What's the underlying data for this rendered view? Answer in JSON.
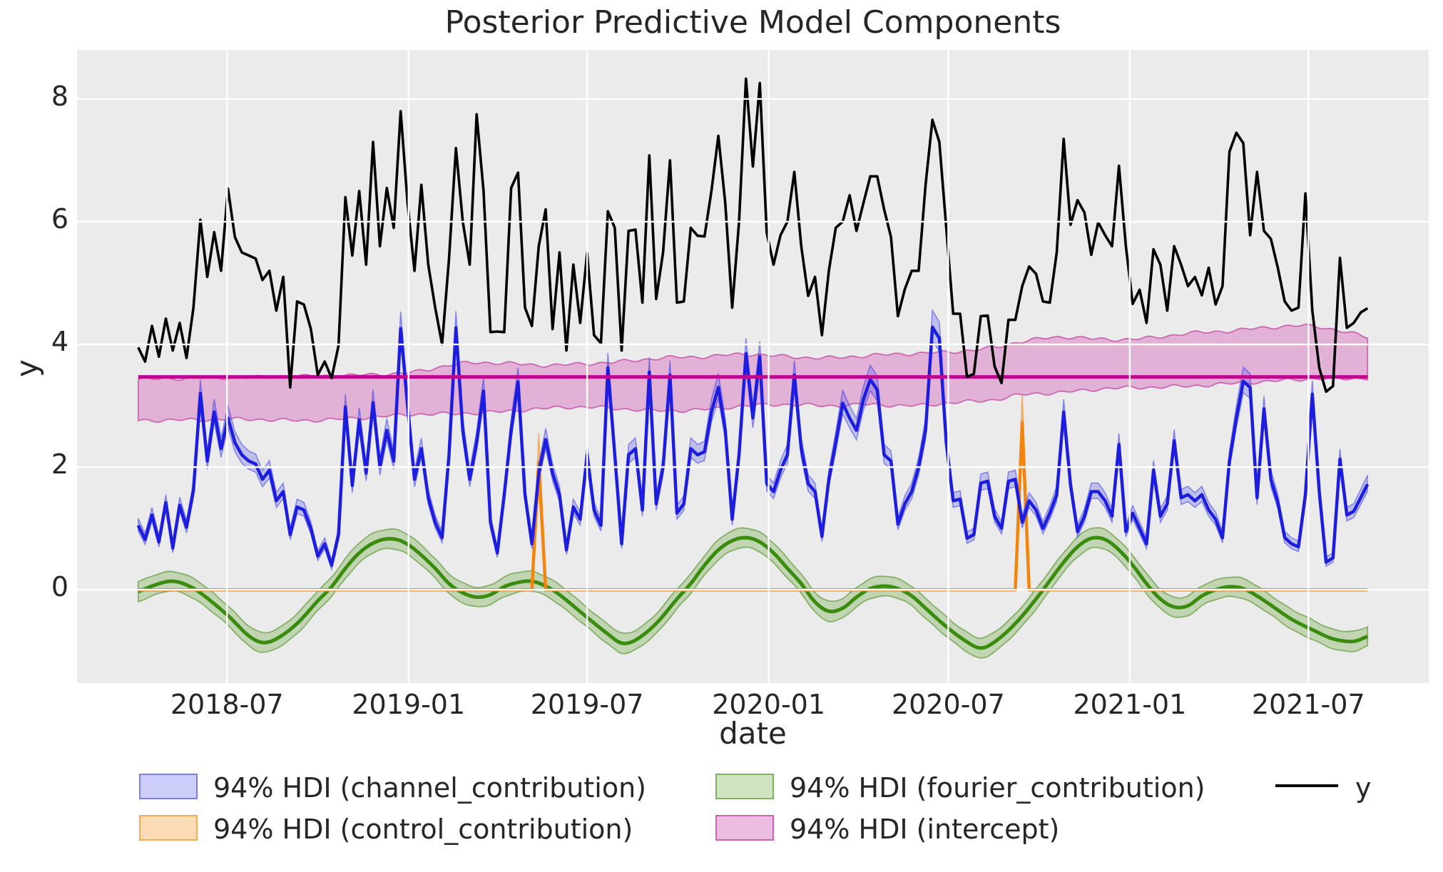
{
  "title": "Posterior Predictive Model Components",
  "axes": {
    "xlabel": "date",
    "ylabel": "y",
    "yticks": [
      "0",
      "2",
      "4",
      "6",
      "8"
    ],
    "xticks": [
      {
        "day": 90,
        "label": "2018-07"
      },
      {
        "day": 274,
        "label": "2019-01"
      },
      {
        "day": 455,
        "label": "2019-07"
      },
      {
        "day": 639,
        "label": "2020-01"
      },
      {
        "day": 821,
        "label": "2020-07"
      },
      {
        "day": 1005,
        "label": "2021-01"
      },
      {
        "day": 1186,
        "label": "2021-07"
      }
    ]
  },
  "colors": {
    "axes_bg": "#ebebeb",
    "grid": "#ffffff",
    "text": "#262626",
    "y_line": "#000000",
    "channel_line": "#1d1de0",
    "channel_band": "rgba(60,60,235,0.26)",
    "channel_edge": "rgba(60,60,235,0.55)",
    "control_line": "#f2850d",
    "control_band": "rgba(242,133,13,0.30)",
    "control_edge": "rgba(242,133,13,0.55)",
    "fourier_line": "#3a8c0e",
    "fourier_band": "rgba(106,168,60,0.32)",
    "fourier_edge": "rgba(90,150,50,0.65)",
    "intercept_line": "#c0068f",
    "intercept_band": "rgba(216,112,190,0.48)",
    "intercept_edge": "rgba(200,85,170,0.85)"
  },
  "legend": {
    "items": [
      {
        "label": "94% HDI (channel_contribution)",
        "type": "patch",
        "series": "channel"
      },
      {
        "label": "94% HDI (control_contribution)",
        "type": "patch",
        "series": "control"
      },
      {
        "label": "94% HDI (fourier_contribution)",
        "type": "patch",
        "series": "fourier"
      },
      {
        "label": "94% HDI (intercept)",
        "type": "patch",
        "series": "intercept"
      },
      {
        "label": "y",
        "type": "line",
        "series": "y"
      }
    ]
  },
  "chart_data": {
    "type": "line",
    "title": "Posterior Predictive Model Components",
    "xlabel": "date",
    "ylabel": "y",
    "x_start_date": "2018-04-02",
    "step_days": 7,
    "n_points": 179,
    "xlim_days": [
      -62,
      1308
    ],
    "ylim": [
      -1.52,
      8.8
    ],
    "grid": true,
    "legend_position": "below",
    "series": [
      {
        "name": "y",
        "values": [
          3.95,
          3.72,
          4.3,
          3.8,
          4.42,
          3.9,
          4.35,
          3.78,
          4.6,
          6.03,
          5.1,
          5.83,
          5.2,
          6.54,
          5.75,
          5.5,
          5.45,
          5.4,
          5.05,
          5.2,
          4.55,
          5.1,
          3.3,
          4.7,
          4.65,
          4.25,
          3.5,
          3.72,
          3.45,
          3.98,
          6.4,
          5.45,
          6.5,
          5.3,
          7.3,
          5.6,
          6.55,
          5.9,
          7.8,
          6.3,
          5.2,
          6.6,
          5.3,
          4.6,
          4.0,
          5.4,
          7.2,
          6.0,
          5.3,
          7.75,
          6.5,
          4.2,
          4.21,
          4.2,
          6.55,
          6.8,
          4.6,
          4.3,
          5.6,
          6.2,
          4.25,
          5.5,
          3.9,
          5.3,
          4.35,
          5.49,
          4.15,
          4.02,
          6.17,
          5.9,
          3.9,
          5.85,
          5.87,
          4.68,
          7.08,
          4.74,
          5.5,
          7.0,
          4.68,
          4.7,
          5.9,
          5.77,
          5.76,
          6.5,
          7.4,
          6.3,
          4.6,
          6.0,
          8.33,
          6.9,
          8.26,
          5.82,
          5.3,
          5.78,
          6.0,
          6.81,
          5.6,
          4.79,
          5.1,
          4.15,
          5.2,
          5.9,
          6.0,
          6.43,
          5.85,
          6.3,
          6.74,
          6.74,
          6.2,
          5.75,
          4.46,
          4.9,
          5.2,
          5.2,
          6.6,
          7.66,
          7.3,
          5.9,
          4.5,
          4.5,
          3.47,
          3.52,
          4.46,
          4.47,
          3.64,
          3.37,
          4.4,
          4.4,
          4.95,
          5.27,
          5.15,
          4.7,
          4.68,
          5.5,
          7.35,
          5.95,
          6.35,
          6.15,
          5.46,
          5.99,
          5.78,
          5.6,
          6.91,
          5.6,
          4.66,
          4.89,
          4.35,
          5.55,
          5.3,
          4.55,
          5.6,
          5.3,
          4.95,
          5.1,
          4.8,
          5.25,
          4.65,
          4.95,
          7.14,
          7.45,
          7.28,
          5.78,
          6.81,
          5.85,
          5.72,
          5.25,
          4.7,
          4.55,
          4.6,
          6.46,
          4.55,
          3.62,
          3.23,
          3.32,
          5.41,
          4.27,
          4.35,
          4.52,
          4.59
        ]
      },
      {
        "name": "channel_contribution",
        "hdi_label": "94% HDI (channel_contribution)",
        "mean": [
          1.05,
          0.82,
          1.22,
          0.78,
          1.42,
          0.68,
          1.38,
          1.02,
          1.62,
          3.2,
          2.1,
          2.9,
          2.3,
          2.8,
          2.4,
          2.2,
          2.1,
          2.05,
          1.8,
          1.95,
          1.45,
          1.6,
          0.9,
          1.35,
          1.3,
          1.0,
          0.55,
          0.75,
          0.4,
          0.9,
          2.98,
          1.7,
          2.77,
          1.9,
          3.05,
          2.0,
          2.6,
          2.1,
          4.26,
          3.0,
          1.8,
          2.3,
          1.5,
          1.1,
          0.85,
          2.2,
          4.27,
          2.6,
          1.8,
          2.4,
          3.24,
          1.1,
          0.6,
          1.55,
          2.6,
          3.39,
          1.55,
          0.75,
          1.9,
          2.45,
          1.9,
          1.55,
          0.65,
          1.35,
          1.15,
          2.2,
          1.3,
          1.05,
          3.62,
          2.2,
          0.75,
          2.2,
          2.3,
          1.3,
          3.55,
          1.4,
          2.0,
          3.5,
          1.25,
          1.4,
          2.3,
          2.2,
          2.25,
          2.9,
          3.3,
          2.6,
          1.15,
          2.2,
          3.85,
          2.8,
          3.8,
          1.73,
          1.6,
          1.95,
          2.2,
          3.5,
          2.3,
          1.73,
          1.6,
          0.87,
          1.8,
          2.4,
          3.04,
          2.8,
          2.6,
          3.1,
          3.43,
          3.26,
          2.2,
          2.1,
          1.07,
          1.4,
          1.6,
          2.0,
          2.6,
          4.28,
          4.1,
          2.4,
          1.45,
          1.48,
          0.84,
          0.9,
          1.74,
          1.77,
          1.2,
          1.0,
          1.77,
          1.8,
          1.1,
          1.45,
          1.3,
          1.0,
          1.25,
          1.55,
          2.9,
          1.7,
          0.95,
          1.2,
          1.6,
          1.6,
          1.45,
          1.2,
          2.37,
          0.95,
          1.25,
          1.0,
          0.75,
          1.95,
          1.2,
          1.4,
          2.43,
          1.5,
          1.55,
          1.45,
          1.55,
          1.3,
          1.15,
          0.85,
          2.1,
          2.8,
          3.4,
          3.3,
          1.5,
          2.95,
          1.8,
          1.43,
          0.85,
          0.75,
          0.7,
          1.55,
          3.19,
          1.6,
          0.45,
          0.52,
          2.13,
          1.22,
          1.28,
          1.5,
          1.72
        ],
        "hdi_rule": {
          "hi_base": 0.06,
          "hi_frac": 0.05,
          "lo_base": 0.05,
          "lo_frac": 0.04
        }
      },
      {
        "name": "control_contribution",
        "hdi_label": "94% HDI (control_contribution)",
        "baseline": 0,
        "spikes": [
          {
            "week": 58,
            "date": "2019-05-13",
            "mean": 2.08,
            "hdi_lo": 1.62,
            "hdi_hi": 2.55
          },
          {
            "week": 128,
            "date": "2020-09-14",
            "mean": 2.73,
            "hdi_lo": 2.28,
            "hdi_hi": 3.2
          }
        ]
      },
      {
        "name": "fourier_contribution",
        "hdi_label": "94% HDI (fourier_contribution)",
        "control_points_week_value": [
          [
            0,
            -0.03
          ],
          [
            3,
            0.1
          ],
          [
            5,
            0.14
          ],
          [
            7,
            0.08
          ],
          [
            9,
            -0.05
          ],
          [
            13,
            -0.42
          ],
          [
            16,
            -0.75
          ],
          [
            18,
            -0.86
          ],
          [
            20,
            -0.8
          ],
          [
            23,
            -0.55
          ],
          [
            26,
            -0.18
          ],
          [
            28,
            0.05
          ],
          [
            30,
            0.35
          ],
          [
            32,
            0.6
          ],
          [
            34,
            0.76
          ],
          [
            36,
            0.83
          ],
          [
            38,
            0.8
          ],
          [
            40,
            0.66
          ],
          [
            43,
            0.35
          ],
          [
            45,
            0.1
          ],
          [
            47,
            -0.05
          ],
          [
            49,
            -0.12
          ],
          [
            51,
            -0.08
          ],
          [
            53,
            0.05
          ],
          [
            55,
            0.12
          ],
          [
            57,
            0.14
          ],
          [
            59,
            0.06
          ],
          [
            61,
            -0.08
          ],
          [
            65,
            -0.45
          ],
          [
            68,
            -0.72
          ],
          [
            70,
            -0.87
          ],
          [
            72,
            -0.82
          ],
          [
            75,
            -0.55
          ],
          [
            78,
            -0.15
          ],
          [
            80,
            0.1
          ],
          [
            82,
            0.4
          ],
          [
            84,
            0.65
          ],
          [
            86,
            0.8
          ],
          [
            88,
            0.85
          ],
          [
            90,
            0.78
          ],
          [
            92,
            0.6
          ],
          [
            94,
            0.35
          ],
          [
            96,
            0.1
          ],
          [
            98,
            -0.2
          ],
          [
            100,
            -0.35
          ],
          [
            102,
            -0.3
          ],
          [
            104,
            -0.12
          ],
          [
            106,
            0.02
          ],
          [
            108,
            0.06
          ],
          [
            110,
            0.02
          ],
          [
            112,
            -0.1
          ],
          [
            114,
            -0.3
          ],
          [
            117,
            -0.6
          ],
          [
            120,
            -0.85
          ],
          [
            122,
            -0.95
          ],
          [
            124,
            -0.85
          ],
          [
            127,
            -0.55
          ],
          [
            130,
            -0.15
          ],
          [
            132,
            0.15
          ],
          [
            134,
            0.45
          ],
          [
            136,
            0.7
          ],
          [
            138,
            0.84
          ],
          [
            140,
            0.82
          ],
          [
            142,
            0.65
          ],
          [
            144,
            0.4
          ],
          [
            146,
            0.1
          ],
          [
            148,
            -0.15
          ],
          [
            150,
            -0.28
          ],
          [
            152,
            -0.26
          ],
          [
            154,
            -0.1
          ],
          [
            156,
            0.0
          ],
          [
            158,
            0.05
          ],
          [
            160,
            0.02
          ],
          [
            162,
            -0.1
          ],
          [
            164,
            -0.25
          ],
          [
            167,
            -0.48
          ],
          [
            170,
            -0.65
          ],
          [
            173,
            -0.8
          ],
          [
            176,
            -0.84
          ],
          [
            178,
            -0.76
          ]
        ],
        "hdi_halfwidth": 0.16
      },
      {
        "name": "intercept",
        "hdi_label": "94% HDI (intercept)",
        "mean": 3.47,
        "hdi_control_points_week_lo_hi": [
          [
            0,
            2.76,
            3.43
          ],
          [
            8,
            2.77,
            3.45
          ],
          [
            16,
            2.78,
            3.46
          ],
          [
            24,
            2.76,
            3.48
          ],
          [
            32,
            2.8,
            3.5
          ],
          [
            40,
            2.86,
            3.55
          ],
          [
            46,
            2.87,
            3.68
          ],
          [
            52,
            2.9,
            3.7
          ],
          [
            58,
            2.95,
            3.66
          ],
          [
            64,
            2.98,
            3.68
          ],
          [
            70,
            2.95,
            3.72
          ],
          [
            76,
            2.92,
            3.78
          ],
          [
            82,
            2.94,
            3.8
          ],
          [
            88,
            3.0,
            3.84
          ],
          [
            94,
            3.02,
            3.8
          ],
          [
            100,
            3.0,
            3.78
          ],
          [
            106,
            3.02,
            3.82
          ],
          [
            112,
            3.0,
            3.85
          ],
          [
            118,
            3.05,
            3.88
          ],
          [
            124,
            3.1,
            3.95
          ],
          [
            128,
            3.18,
            4.05
          ],
          [
            134,
            3.22,
            4.12
          ],
          [
            140,
            3.28,
            4.08
          ],
          [
            146,
            3.3,
            4.1
          ],
          [
            152,
            3.32,
            4.18
          ],
          [
            158,
            3.36,
            4.22
          ],
          [
            164,
            3.4,
            4.28
          ],
          [
            170,
            3.44,
            4.3
          ],
          [
            174,
            3.44,
            4.22
          ],
          [
            178,
            3.45,
            4.12
          ]
        ]
      }
    ]
  }
}
